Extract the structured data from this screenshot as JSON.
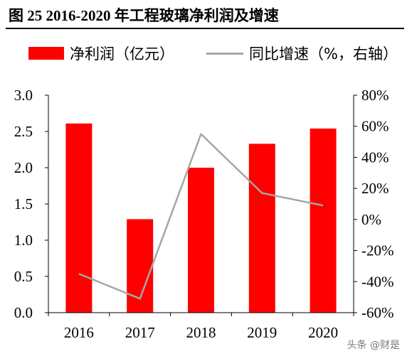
{
  "title": "图 25  2016-2020 年工程玻璃净利润及增速",
  "watermark": "头条 @财是",
  "chart_data": {
    "type": "bar",
    "categories": [
      "2016",
      "2017",
      "2018",
      "2019",
      "2020"
    ],
    "series": [
      {
        "name": "净利润（亿元）",
        "type": "bar",
        "axis": "left",
        "color": "#ff0000",
        "values": [
          2.61,
          1.29,
          2.0,
          2.33,
          2.54
        ]
      },
      {
        "name": "同比增速（%，右轴）",
        "type": "line",
        "axis": "right",
        "color": "#a6a6a6",
        "values": [
          -35,
          -51,
          55,
          17,
          9
        ]
      }
    ],
    "y_left": {
      "min": 0,
      "max": 3,
      "ticks": [
        0,
        0.5,
        1,
        1.5,
        2,
        2.5,
        3
      ],
      "tick_labels": [
        "0.0",
        "0.5",
        "1.0",
        "1.5",
        "2.0",
        "2.5",
        "3.0"
      ]
    },
    "y_right": {
      "min": -60,
      "max": 80,
      "ticks": [
        -60,
        -40,
        -20,
        0,
        20,
        40,
        60,
        80
      ],
      "tick_labels": [
        "-60%",
        "-40%",
        "-20%",
        "0%",
        "20%",
        "40%",
        "60%",
        "80%"
      ]
    },
    "grid": false,
    "legend_position": "top"
  }
}
